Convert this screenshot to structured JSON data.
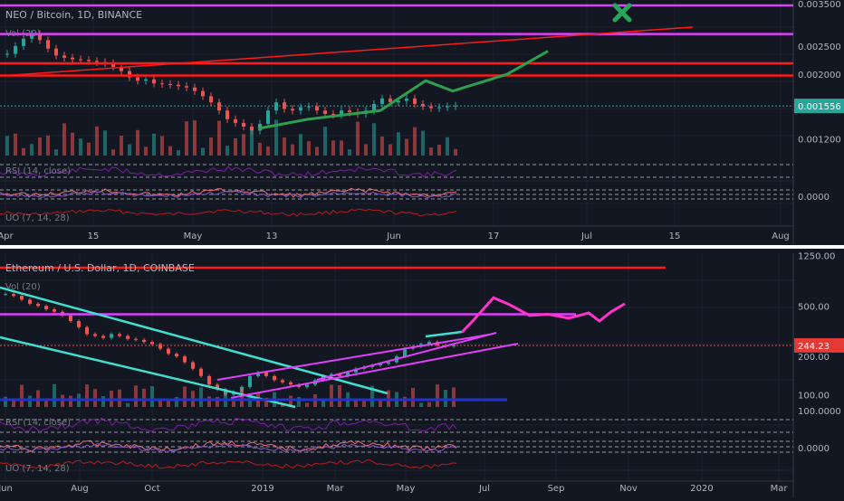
{
  "colors": {
    "background": "#131722",
    "grid": "#1e2130",
    "up": "#26a69a",
    "down": "#ef5350",
    "magenta": "#e040fb",
    "red_level": "#ff1a1a",
    "cyan": "#40e0d0",
    "green_path": "#2e9e4f",
    "pink_path": "#ff33cc",
    "price_tag": "#131722",
    "eth_tag": "#e53935"
  },
  "top_panel": {
    "title": "NEO / Bitcoin, 1D, BINANCE",
    "vol_label": "Vol (20)",
    "rsi_label": "RSI (14, close)",
    "uo_label": "UO (7, 14, 28)",
    "marker_icon": "x-mark-icon",
    "price_axis": [
      "0.003500",
      "0.002500",
      "0.002000",
      "0.001200"
    ],
    "last_price": "0.001556",
    "osc_axis_label": "0.0000",
    "time_axis": [
      "Apr",
      "15",
      "May",
      "13",
      "Jun",
      "17",
      "Jul",
      "15",
      "Aug"
    ]
  },
  "bottom_panel": {
    "title": "Ethereum / U.S. Dollar, 1D, COINBASE",
    "vol_label": "Vol (20)",
    "rsi_label": "RSI (14, close)",
    "uo_label": "UO (7, 14, 28)",
    "price_axis": [
      "1250.00",
      "500.00",
      "200.00",
      "100.00"
    ],
    "last_price": "244.23",
    "rsi_axis_label": "100.0000",
    "osc_axis_label": "0.0000",
    "time_axis": [
      "Jun",
      "Aug",
      "Oct",
      "2019",
      "Mar",
      "May",
      "Jul",
      "Sep",
      "Nov",
      "2020",
      "Mar"
    ]
  },
  "chart_data": [
    {
      "type": "candlestick",
      "title": "NEO / Bitcoin, 1D, BINANCE",
      "scale": "log",
      "ylim": [
        0.00105,
        0.0036
      ],
      "y_ticks": [
        0.0035,
        0.0025,
        0.002,
        0.0012
      ],
      "last_price": 0.001556,
      "close_series": [
        0.00235,
        0.0025,
        0.00265,
        0.00275,
        0.00262,
        0.00245,
        0.00232,
        0.00228,
        0.00225,
        0.00224,
        0.00222,
        0.0022,
        0.00218,
        0.00212,
        0.00205,
        0.00195,
        0.0019,
        0.00192,
        0.00186,
        0.00185,
        0.00184,
        0.00182,
        0.0018,
        0.00175,
        0.00168,
        0.0016,
        0.0015,
        0.0014,
        0.00136,
        0.00132,
        0.00128,
        0.00135,
        0.0015,
        0.0016,
        0.00152,
        0.0015,
        0.00154,
        0.00155,
        0.0015,
        0.00146,
        0.00145,
        0.0015,
        0.00148,
        0.00146,
        0.0015,
        0.00158,
        0.00165,
        0.0016,
        0.00162,
        0.00165,
        0.00158,
        0.00155,
        0.00153,
        0.00154,
        0.00155,
        0.00156
      ],
      "horizontal_levels": [
        {
          "value": 0.00345,
          "color": "magenta"
        },
        {
          "value": 0.00275,
          "color": "magenta"
        },
        {
          "value": 0.00218,
          "color": "red"
        },
        {
          "value": 0.00198,
          "color": "red"
        }
      ],
      "projection_path": [
        0.0013,
        0.0014,
        0.0015,
        0.0019,
        0.00175,
        0.002,
        0.0024
      ]
    },
    {
      "type": "candlestick",
      "title": "Ethereum / U.S. Dollar, 1D, COINBASE",
      "scale": "log",
      "ylim": [
        80,
        1300
      ],
      "y_ticks": [
        1250,
        500,
        200,
        100
      ],
      "last_price": 244.23,
      "close_series": [
        620,
        600,
        560,
        520,
        500,
        470,
        450,
        420,
        380,
        340,
        300,
        290,
        280,
        300,
        290,
        275,
        270,
        260,
        250,
        230,
        210,
        200,
        180,
        160,
        140,
        120,
        110,
        100,
        105,
        115,
        140,
        150,
        140,
        130,
        125,
        120,
        115,
        120,
        130,
        140,
        145,
        140,
        150,
        160,
        165,
        170,
        175,
        180,
        200,
        230,
        240,
        250,
        260,
        245,
        240,
        244
      ],
      "horizontal_levels": [
        {
          "value": 1000,
          "color": "red"
        },
        {
          "value": 430,
          "color": "magenta"
        }
      ],
      "projection_path": [
        310,
        380,
        580,
        510,
        420,
        430,
        400,
        440,
        380,
        450,
        520
      ]
    }
  ]
}
